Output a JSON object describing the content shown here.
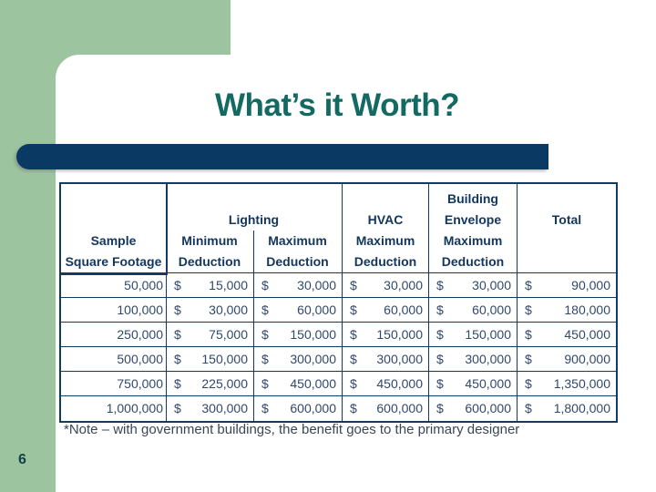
{
  "slide": {
    "title": "What’s it Worth?",
    "page_number": "6",
    "footnote": "*Note – with government buildings, the benefit goes to the primary designer"
  },
  "table": {
    "currency": "$",
    "header": {
      "lighting_group": "Lighting",
      "columns": [
        {
          "lines": [
            "",
            "",
            "Sample",
            "Square Footage"
          ]
        },
        {
          "lines": [
            "",
            "",
            "Minimum",
            "Deduction"
          ]
        },
        {
          "lines": [
            "",
            "",
            "Maximum",
            "Deduction"
          ]
        },
        {
          "lines": [
            "",
            "HVAC",
            "Maximum",
            "Deduction"
          ]
        },
        {
          "lines": [
            "Building",
            "Envelope",
            "Maximum",
            "Deduction"
          ]
        },
        {
          "lines": [
            "",
            "Total",
            "",
            ""
          ]
        }
      ]
    },
    "rows": [
      {
        "sqft": "50,000",
        "values": [
          "15,000",
          "30,000",
          "30,000",
          "30,000",
          "90,000"
        ]
      },
      {
        "sqft": "100,000",
        "values": [
          "30,000",
          "60,000",
          "60,000",
          "60,000",
          "180,000"
        ]
      },
      {
        "sqft": "250,000",
        "values": [
          "75,000",
          "150,000",
          "150,000",
          "150,000",
          "450,000"
        ]
      },
      {
        "sqft": "500,000",
        "values": [
          "150,000",
          "300,000",
          "300,000",
          "300,000",
          "900,000"
        ]
      },
      {
        "sqft": "750,000",
        "values": [
          "225,000",
          "450,000",
          "450,000",
          "450,000",
          "1,350,000"
        ]
      },
      {
        "sqft": "1,000,000",
        "values": [
          "300,000",
          "600,000",
          "600,000",
          "600,000",
          "1,800,000"
        ]
      }
    ]
  },
  "colors": {
    "sage_green": "#9CC49E",
    "navy_bar": "#0A3A64",
    "title_teal": "#126A62",
    "table_line": "#123A62"
  }
}
